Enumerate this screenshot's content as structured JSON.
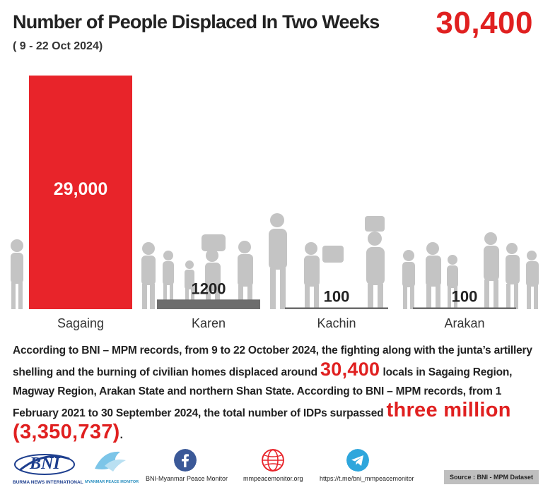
{
  "header": {
    "title": "Number of People Displaced In Two Weeks",
    "subtitle": "( 9 - 22 Oct 2024)",
    "total": "30,400"
  },
  "chart_data": {
    "type": "bar",
    "title": "Number of People Displaced In Two Weeks",
    "subtitle": "( 9 - 22 Oct 2024)",
    "categories": [
      "Sagaing",
      "Karen",
      "Kachin",
      "Arakan"
    ],
    "values": [
      29000,
      1200,
      100,
      100
    ],
    "value_labels": [
      "29,000",
      "1200",
      "100",
      "100"
    ],
    "ylim": [
      0,
      29000
    ],
    "colors": [
      "#e8242a",
      "#6d6d6d",
      "#6d6d6d",
      "#6d6d6d"
    ],
    "grid": false,
    "legend": "none"
  },
  "description": {
    "part1": "According to BNI – MPM records, from 9 to 22 October 2024, the fighting along with the junta’s artillery shelling and the burning of civilian homes displaced around ",
    "highlight1": "30,400",
    "part2": " locals in Sagaing Region, Magway Region, Arakan State and northern Shan State. According to BNI – MPM records, from 1 February 2021 to 30 September 2024, the total number of IDPs surpassed ",
    "highlight2": "three million (3,350,737)",
    "part3": "."
  },
  "footer": {
    "bni_logo_text": "BNI",
    "bni_caption": "BURMA NEWS INTERNATIONAL",
    "mpm_caption": "MYANMAR PEACE MONITOR",
    "facebook_text": "BNI-Myanmar Peace Monitor",
    "web_text": "mmpeacemonitor.org",
    "telegram_text": "https://t.me/bni_mmpeacemonitor",
    "source": "Source : BNI - MPM Dataset",
    "icons": [
      "facebook-icon",
      "globe-icon",
      "telegram-icon"
    ],
    "colors": {
      "facebook": "#3b5998",
      "web": "#e8242a",
      "telegram": "#2ea6dc",
      "bni": "#1d3e8e"
    }
  }
}
